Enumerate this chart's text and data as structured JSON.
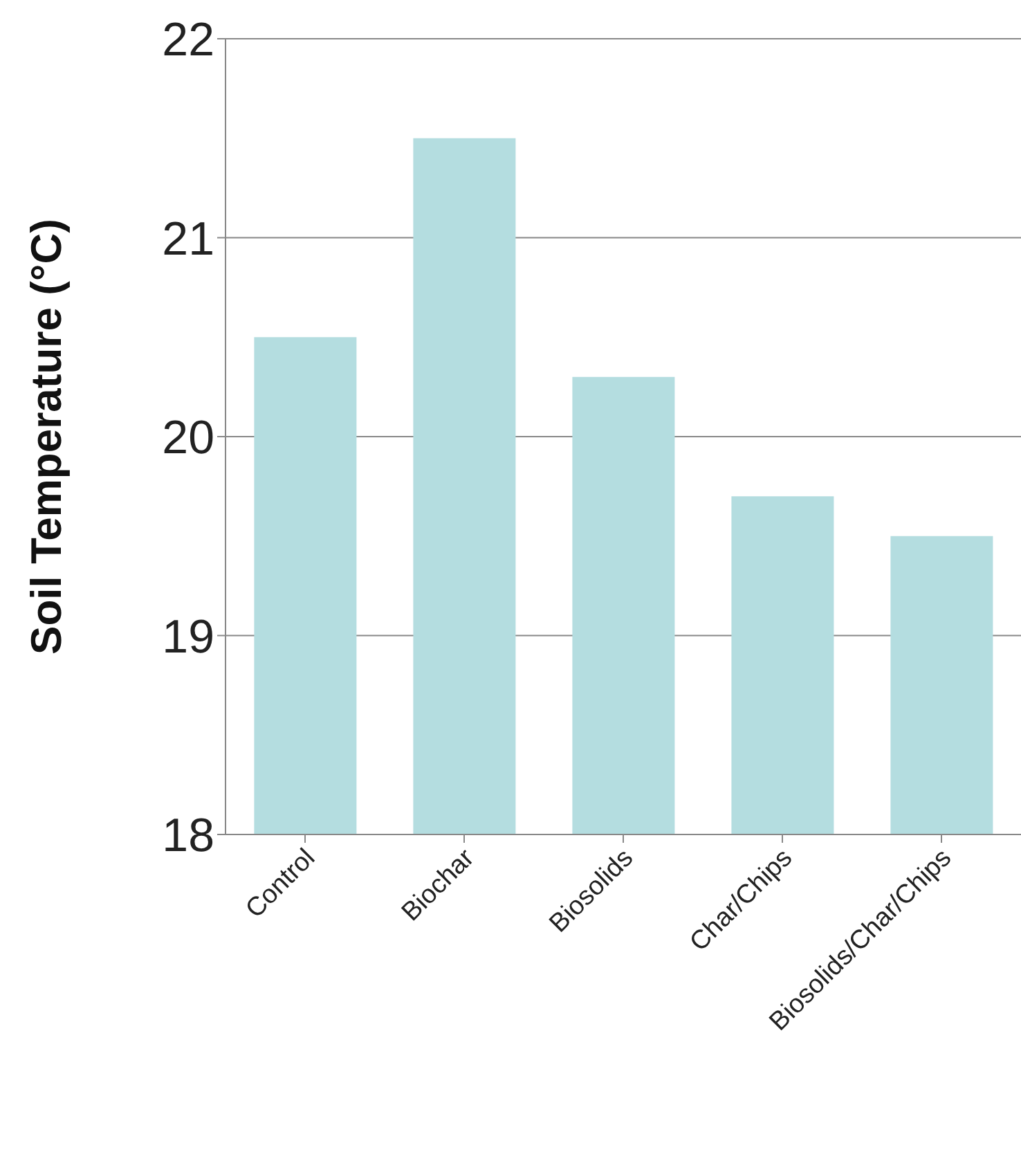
{
  "chart_data": {
    "type": "bar",
    "ylabel": "Soil Temperature (°C)",
    "categories": [
      "Control",
      "Biochar",
      "Biosolids",
      "Char/Chips",
      "Biosolids/Char/Chips"
    ],
    "values": [
      20.5,
      21.5,
      20.3,
      19.7,
      19.5
    ],
    "color": "#b4dde0",
    "ylim": [
      18,
      22
    ],
    "yticks": [
      18,
      19,
      20,
      21,
      22
    ],
    "grid": "y"
  }
}
